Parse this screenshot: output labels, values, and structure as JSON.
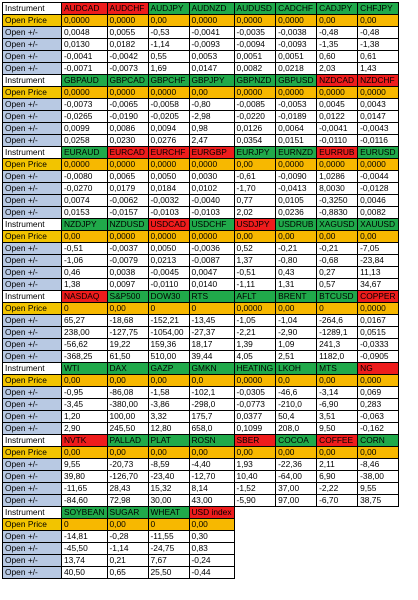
{
  "colors": {
    "green": "#20a94a",
    "red": "#ee1c1c",
    "orange": "#f7b800",
    "label_blue": "#b8c9e3"
  },
  "labels": {
    "instrument": "Instrument",
    "open_price": "Open Price",
    "open_change": "Open +/-"
  },
  "blocks": [
    {
      "instruments": [
        {
          "name": "AUDCAD",
          "status": "red"
        },
        {
          "name": "AUDCHF",
          "status": "red"
        },
        {
          "name": "AUDJPY",
          "status": "green"
        },
        {
          "name": "AUDNZD",
          "status": "green"
        },
        {
          "name": "AUDUSD",
          "status": "green"
        },
        {
          "name": "CADCHF",
          "status": "green"
        },
        {
          "name": "CADJPY",
          "status": "green"
        },
        {
          "name": "CHFJPY",
          "status": "green"
        }
      ],
      "open_price": [
        "0,0000",
        "0,0000",
        "0,00",
        "0,0000",
        "0,0000",
        "0,0000",
        "0,00",
        "0,00"
      ],
      "rows": [
        [
          "0,0048",
          "0,0055",
          "-0,53",
          "-0,0041",
          "-0,0035",
          "-0,0038",
          "-0,48",
          "-0,48"
        ],
        [
          "0,0130",
          "0,0182",
          "-1,14",
          "-0,0093",
          "-0,0094",
          "-0,0093",
          "-1,35",
          "-1,38"
        ],
        [
          "-0,0041",
          "-0,0042",
          "0,55",
          "0,0053",
          "0,0051",
          "0,0051",
          "0,60",
          "0,61"
        ],
        [
          "-0,0071",
          "-0,0073",
          "1,69",
          "0,0147",
          "0,0082",
          "0,0218",
          "2,03",
          "1,43"
        ]
      ]
    },
    {
      "instruments": [
        {
          "name": "GBPAUD",
          "status": "green"
        },
        {
          "name": "GBPCAD",
          "status": "green"
        },
        {
          "name": "GBPCHF",
          "status": "green"
        },
        {
          "name": "GBPJPY",
          "status": "green"
        },
        {
          "name": "GBPNZD",
          "status": "green"
        },
        {
          "name": "GBPUSD",
          "status": "green"
        },
        {
          "name": "NZDCAD",
          "status": "red"
        },
        {
          "name": "NZDCHF",
          "status": "red"
        }
      ],
      "open_price": [
        "0,0000",
        "0,0000",
        "0,0000",
        "0,00",
        "0,0000",
        "0,0000",
        "0,0000",
        "0,0000"
      ],
      "rows": [
        [
          "-0,0073",
          "-0,0065",
          "-0,0058",
          "-0,80",
          "-0,0085",
          "-0,0053",
          "0,0045",
          "0,0043"
        ],
        [
          "-0,0265",
          "-0,0190",
          "-0,0205",
          "-2,98",
          "-0,0220",
          "-0,0189",
          "0,0122",
          "0,0147"
        ],
        [
          "0,0099",
          "0,0086",
          "0,0094",
          "0,98",
          "0,0126",
          "0,0064",
          "-0,0041",
          "-0,0043"
        ],
        [
          "0,0258",
          "0,0230",
          "0,0276",
          "2,47",
          "0,0354",
          "0,0151",
          "-0,0110",
          "-0,0116"
        ]
      ]
    },
    {
      "instruments": [
        {
          "name": "EURAUD",
          "status": "green"
        },
        {
          "name": "EURCAD",
          "status": "red"
        },
        {
          "name": "EURCHF",
          "status": "red"
        },
        {
          "name": "EURGBP",
          "status": "red"
        },
        {
          "name": "EURJPY",
          "status": "green"
        },
        {
          "name": "EURNZD",
          "status": "green"
        },
        {
          "name": "EURRUB",
          "status": "red"
        },
        {
          "name": "EURUSD",
          "status": "green"
        }
      ],
      "open_price": [
        "0,0000",
        "0,0000",
        "0,0000",
        "0,0000",
        "0,00",
        "0,0000",
        "0,0000",
        "0,0000"
      ],
      "rows": [
        [
          "-0,0080",
          "0,0065",
          "0,0050",
          "0,0030",
          "-0,61",
          "-0,0090",
          "1,0286",
          "-0,0044"
        ],
        [
          "-0,0270",
          "0,0179",
          "0,0184",
          "0,0102",
          "-1,70",
          "-0,0413",
          "8,0030",
          "-0,0128"
        ],
        [
          "0,0074",
          "-0,0062",
          "-0,0032",
          "-0,0040",
          "0,77",
          "0,0105",
          "-0,3250",
          "0,0046"
        ],
        [
          "0,0153",
          "-0,0157",
          "-0,0103",
          "-0,0103",
          "2,02",
          "0,0236",
          "-0,8830",
          "0,0082"
        ]
      ]
    },
    {
      "instruments": [
        {
          "name": "NZDJPY",
          "status": "green"
        },
        {
          "name": "NZDUSD",
          "status": "green"
        },
        {
          "name": "USDCAD",
          "status": "red"
        },
        {
          "name": "USDCHF",
          "status": "green"
        },
        {
          "name": "USDJPY",
          "status": "red"
        },
        {
          "name": "USDRUB",
          "status": "green"
        },
        {
          "name": "XAGUSD",
          "status": "green"
        },
        {
          "name": "XAUUSD",
          "status": "green"
        }
      ],
      "open_price": [
        "0,00",
        "0,0000",
        "0,0000",
        "0,0000",
        "0,00",
        "0,00",
        "0,00",
        "0,00"
      ],
      "rows": [
        [
          "-0,51",
          "-0,0037",
          "0,0050",
          "-0,0036",
          "0,52",
          "-0,21",
          "-0,21",
          "-7,05"
        ],
        [
          "-1,06",
          "-0,0079",
          "0,0213",
          "-0,0087",
          "1,37",
          "-0,80",
          "-0,68",
          "-23,84"
        ],
        [
          "0,46",
          "0,0038",
          "-0,0045",
          "0,0047",
          "-0,51",
          "0,43",
          "0,27",
          "11,13"
        ],
        [
          "1,38",
          "0,0097",
          "-0,0110",
          "0,0140",
          "-1,11",
          "1,31",
          "0,57",
          "34,67"
        ]
      ]
    },
    {
      "instruments": [
        {
          "name": "NASDAQ",
          "status": "red"
        },
        {
          "name": "S&P500",
          "status": "green"
        },
        {
          "name": "DOW30",
          "status": "green"
        },
        {
          "name": "RTS",
          "status": "green"
        },
        {
          "name": "AFLT",
          "status": "green"
        },
        {
          "name": "BRENT",
          "status": "green"
        },
        {
          "name": "BTCUSD",
          "status": "green"
        },
        {
          "name": "COPPER",
          "status": "red"
        }
      ],
      "open_price": [
        "0",
        "0,00",
        "0",
        "0",
        "0,0000",
        "0,00",
        "0",
        "0,0000"
      ],
      "rows": [
        [
          "65,27",
          "-18,68",
          "-152,21",
          "-13,45",
          "-1,05",
          "-1,04",
          "-264,6",
          "0,0167"
        ],
        [
          "238,00",
          "-127,75",
          "-1054,00",
          "-27,37",
          "-2,21",
          "-2,90",
          "-1289,1",
          "0,0515"
        ],
        [
          "-56,62",
          "19,22",
          "159,36",
          "18,17",
          "1,39",
          "1,09",
          "241,3",
          "-0,0333"
        ],
        [
          "-368,25",
          "61,50",
          "510,00",
          "39,44",
          "4,05",
          "2,51",
          "1182,0",
          "-0,0905"
        ]
      ]
    },
    {
      "instruments": [
        {
          "name": "WTI",
          "status": "green"
        },
        {
          "name": "DAX",
          "status": "green"
        },
        {
          "name": "GAZP",
          "status": "green"
        },
        {
          "name": "GMKN",
          "status": "green"
        },
        {
          "name": "HEATING",
          "status": "green"
        },
        {
          "name": "LKOH",
          "status": "green"
        },
        {
          "name": "MTS",
          "status": "green"
        },
        {
          "name": "NG",
          "status": "red"
        }
      ],
      "open_price": [
        "0,00",
        "0,00",
        "0,00",
        "0,0",
        "0,0000",
        "0,0",
        "0,00",
        "0,000"
      ],
      "rows": [
        [
          "-0,95",
          "-86,08",
          "-1,58",
          "-102,1",
          "-0,0305",
          "-46,6",
          "-3,14",
          "0,069"
        ],
        [
          "-3,45",
          "-380,00",
          "-3,86",
          "-298,0",
          "-0,0773",
          "-210,0",
          "-6,90",
          "0,283"
        ],
        [
          "1,20",
          "100,00",
          "3,32",
          "175,7",
          "0,0377",
          "50,4",
          "3,51",
          "-0,063"
        ],
        [
          "2,90",
          "245,50",
          "12,80",
          "658,0",
          "0,1099",
          "208,0",
          "9,50",
          "-0,162"
        ]
      ]
    },
    {
      "instruments": [
        {
          "name": "NVTK",
          "status": "red"
        },
        {
          "name": "PALLAD",
          "status": "green"
        },
        {
          "name": "PLAT",
          "status": "green"
        },
        {
          "name": "ROSN",
          "status": "green"
        },
        {
          "name": "SBER",
          "status": "red"
        },
        {
          "name": "COCOA",
          "status": "green"
        },
        {
          "name": "COFFEE",
          "status": "red"
        },
        {
          "name": "CORN",
          "status": "green"
        }
      ],
      "open_price": [
        "0,00",
        "0,00",
        "0,00",
        "0,00",
        "0,00",
        "0,00",
        "0,00",
        "0,00"
      ],
      "rows": [
        [
          "9,55",
          "-20,73",
          "-8,59",
          "-4,40",
          "1,93",
          "-22,36",
          "2,11",
          "-8,46"
        ],
        [
          "39,80",
          "-126,70",
          "-23,40",
          "-12,70",
          "10,40",
          "-64,00",
          "6,90",
          "-38,00"
        ],
        [
          "-11,65",
          "28,43",
          "15,32",
          "8,14",
          "-1,52",
          "37,00",
          "-2,22",
          "9,55"
        ],
        [
          "-84,60",
          "72,98",
          "30,00",
          "43,00",
          "-5,90",
          "97,00",
          "-6,70",
          "38,75"
        ]
      ]
    },
    {
      "instruments": [
        {
          "name": "SOYBEAN",
          "status": "green"
        },
        {
          "name": "SUGAR",
          "status": "green"
        },
        {
          "name": "WHEAT",
          "status": "green"
        },
        {
          "name": "USD index",
          "status": "red"
        }
      ],
      "open_price": [
        "0",
        "0,00",
        "0",
        "0,00"
      ],
      "rows": [
        [
          "-14,81",
          "-0,28",
          "-11,55",
          "0,30"
        ],
        [
          "-45,50",
          "-1,14",
          "-24,75",
          "0,83"
        ],
        [
          "13,74",
          "0,21",
          "7,67",
          "-0,24"
        ],
        [
          "40,50",
          "0,65",
          "25,50",
          "-0,44"
        ]
      ]
    }
  ]
}
